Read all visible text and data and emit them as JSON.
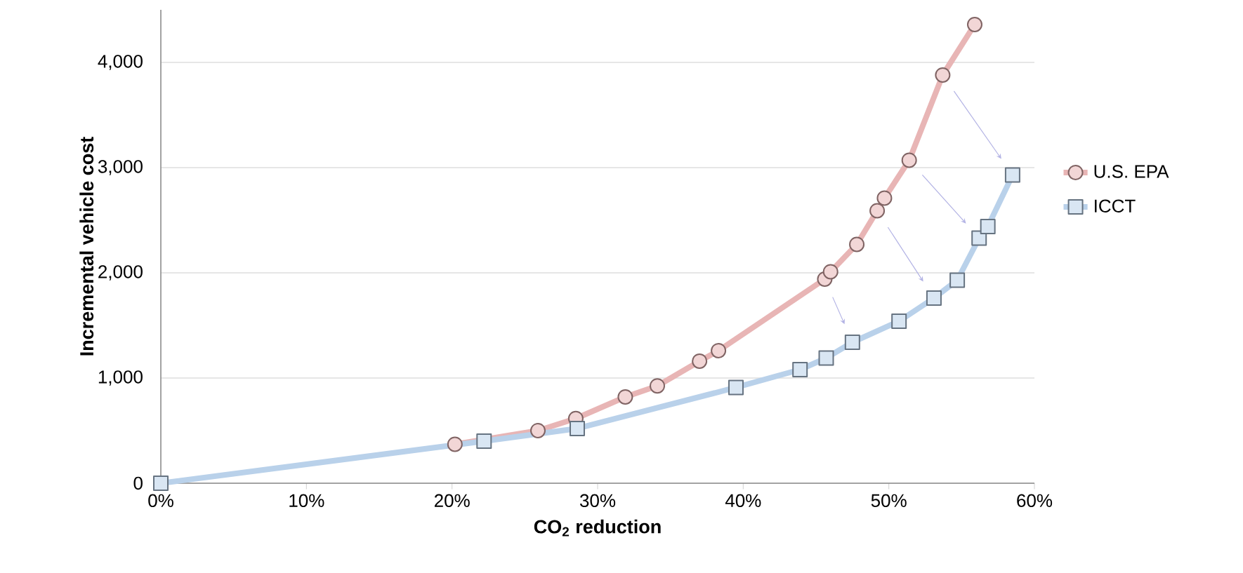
{
  "chart_data": {
    "type": "line",
    "xlabel": "CO$_{2}$ reduction",
    "ylabel": "Incremental vehicle cost",
    "xlim": [
      0,
      60
    ],
    "ylim": [
      0,
      4500
    ],
    "xticks": [
      {
        "value": 0,
        "label": "0%"
      },
      {
        "value": 10,
        "label": "10%"
      },
      {
        "value": 20,
        "label": "20%"
      },
      {
        "value": 30,
        "label": "30%"
      },
      {
        "value": 40,
        "label": "40%"
      },
      {
        "value": 50,
        "label": "50%"
      },
      {
        "value": 60,
        "label": "60%"
      }
    ],
    "yticks": [
      0,
      {
        "value": 1000,
        "label": "1,000"
      },
      {
        "value": 2000,
        "label": "2,000"
      },
      {
        "value": 3000,
        "label": "3,000"
      },
      {
        "value": 4000,
        "label": "4,000"
      }
    ],
    "grid": "y",
    "legend": "right",
    "series": [
      {
        "name": "U.S. EPA",
        "color": "#e8b5b5",
        "marker": "circle",
        "x": [
          20.2,
          25.9,
          28.5,
          31.9,
          34.1,
          37.0,
          38.3,
          45.6,
          46.0,
          47.8,
          49.2,
          49.7,
          51.4,
          53.7,
          55.9
        ],
        "values": [
          370,
          500,
          615,
          820,
          925,
          1160,
          1260,
          1940,
          2010,
          2270,
          2590,
          2710,
          3070,
          3880,
          4360
        ]
      },
      {
        "name": "ICCT",
        "color": "#b9d1ea",
        "marker": "square",
        "x": [
          0,
          22.2,
          28.6,
          39.5,
          43.9,
          45.7,
          47.5,
          50.7,
          53.1,
          54.7,
          56.2,
          56.8,
          58.5
        ],
        "values": [
          0,
          400,
          520,
          910,
          1080,
          1190,
          1340,
          1540,
          1760,
          1930,
          2330,
          2440,
          2930
        ]
      }
    ]
  }
}
